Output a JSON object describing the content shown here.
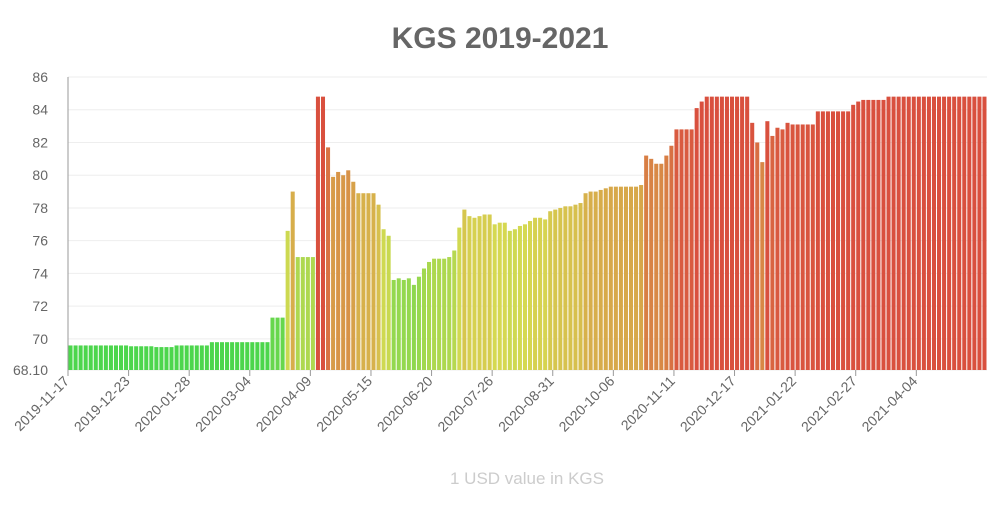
{
  "chart_data": {
    "type": "bar",
    "title": "KGS 2019-2021",
    "x_label": "1 USD value in KGS",
    "categories": [
      "2019-11-17",
      null,
      null,
      null,
      null,
      null,
      null,
      null,
      null,
      null,
      null,
      null,
      "2019-12-23",
      null,
      null,
      null,
      null,
      null,
      null,
      null,
      null,
      null,
      null,
      null,
      "2020-01-28",
      null,
      null,
      null,
      null,
      null,
      null,
      null,
      null,
      null,
      null,
      null,
      "2020-03-04",
      null,
      null,
      null,
      null,
      null,
      null,
      null,
      null,
      null,
      null,
      null,
      "2020-04-09",
      null,
      null,
      null,
      null,
      null,
      null,
      null,
      null,
      null,
      null,
      null,
      "2020-05-15",
      null,
      null,
      null,
      null,
      null,
      null,
      null,
      null,
      null,
      null,
      null,
      "2020-06-20",
      null,
      null,
      null,
      null,
      null,
      null,
      null,
      null,
      null,
      null,
      null,
      "2020-07-26",
      null,
      null,
      null,
      null,
      null,
      null,
      null,
      null,
      null,
      null,
      null,
      "2020-08-31",
      null,
      null,
      null,
      null,
      null,
      null,
      null,
      null,
      null,
      null,
      null,
      "2020-10-06",
      null,
      null,
      null,
      null,
      null,
      null,
      null,
      null,
      null,
      null,
      null,
      "2020-11-11",
      null,
      null,
      null,
      null,
      null,
      null,
      null,
      null,
      null,
      null,
      null,
      "2020-12-17",
      null,
      null,
      null,
      null,
      null,
      null,
      null,
      null,
      null,
      null,
      null,
      "2021-01-22",
      null,
      null,
      null,
      null,
      null,
      null,
      null,
      null,
      null,
      null,
      null,
      "2021-02-27",
      null,
      null,
      null,
      null,
      null,
      null,
      null,
      null,
      null,
      null,
      null,
      "2021-04-04",
      null,
      null,
      null,
      null,
      null,
      null,
      null,
      null,
      null,
      null,
      null,
      null,
      null
    ],
    "values": [
      69.6,
      69.6,
      69.6,
      69.6,
      69.6,
      69.6,
      69.6,
      69.6,
      69.6,
      69.6,
      69.6,
      69.6,
      69.55,
      69.55,
      69.55,
      69.55,
      69.55,
      69.5,
      69.5,
      69.5,
      69.5,
      69.6,
      69.6,
      69.6,
      69.6,
      69.6,
      69.6,
      69.6,
      69.8,
      69.8,
      69.8,
      69.8,
      69.8,
      69.8,
      69.8,
      69.8,
      69.8,
      69.8,
      69.8,
      69.8,
      71.3,
      71.3,
      71.3,
      76.6,
      79.0,
      75.0,
      75.0,
      75.0,
      75.0,
      84.8,
      84.8,
      81.7,
      79.9,
      80.2,
      80.0,
      80.3,
      79.6,
      78.9,
      78.9,
      78.9,
      78.9,
      78.2,
      76.7,
      76.3,
      73.6,
      73.7,
      73.6,
      73.7,
      73.3,
      73.8,
      74.3,
      74.7,
      74.9,
      74.9,
      74.9,
      75.0,
      75.4,
      76.8,
      77.9,
      77.5,
      77.4,
      77.5,
      77.6,
      77.6,
      77.0,
      77.1,
      77.1,
      76.6,
      76.7,
      76.9,
      77.0,
      77.2,
      77.4,
      77.4,
      77.3,
      77.8,
      77.9,
      78.0,
      78.1,
      78.1,
      78.2,
      78.3,
      78.9,
      79.0,
      79.0,
      79.1,
      79.2,
      79.3,
      79.3,
      79.3,
      79.3,
      79.3,
      79.3,
      79.4,
      81.2,
      81.0,
      80.7,
      80.7,
      81.2,
      81.8,
      82.8,
      82.8,
      82.8,
      82.8,
      84.1,
      84.5,
      84.8,
      84.8,
      84.8,
      84.8,
      84.8,
      84.8,
      84.8,
      84.8,
      84.8,
      83.2,
      82.0,
      80.8,
      83.3,
      82.4,
      82.9,
      82.8,
      83.2,
      83.1,
      83.1,
      83.1,
      83.1,
      83.1,
      83.9,
      83.9,
      83.9,
      83.9,
      83.9,
      83.9,
      83.9,
      84.3,
      84.5,
      84.6,
      84.6,
      84.6,
      84.6,
      84.6,
      84.8,
      84.8,
      84.8,
      84.8,
      84.8,
      84.8,
      84.8,
      84.8,
      84.8,
      84.8,
      84.8,
      84.8,
      84.8,
      84.8,
      84.8,
      84.8,
      84.8,
      84.8,
      84.8,
      84.8
    ],
    "colors": [
      "#4cd64c",
      "#d6d951",
      "#d9503e"
    ],
    "ylim": [
      68.1,
      86
    ],
    "yticks": [
      {
        "value": 68.1,
        "label": "68.10"
      },
      70,
      72,
      74,
      76,
      78,
      80,
      82,
      84,
      86
    ],
    "grid": true
  }
}
